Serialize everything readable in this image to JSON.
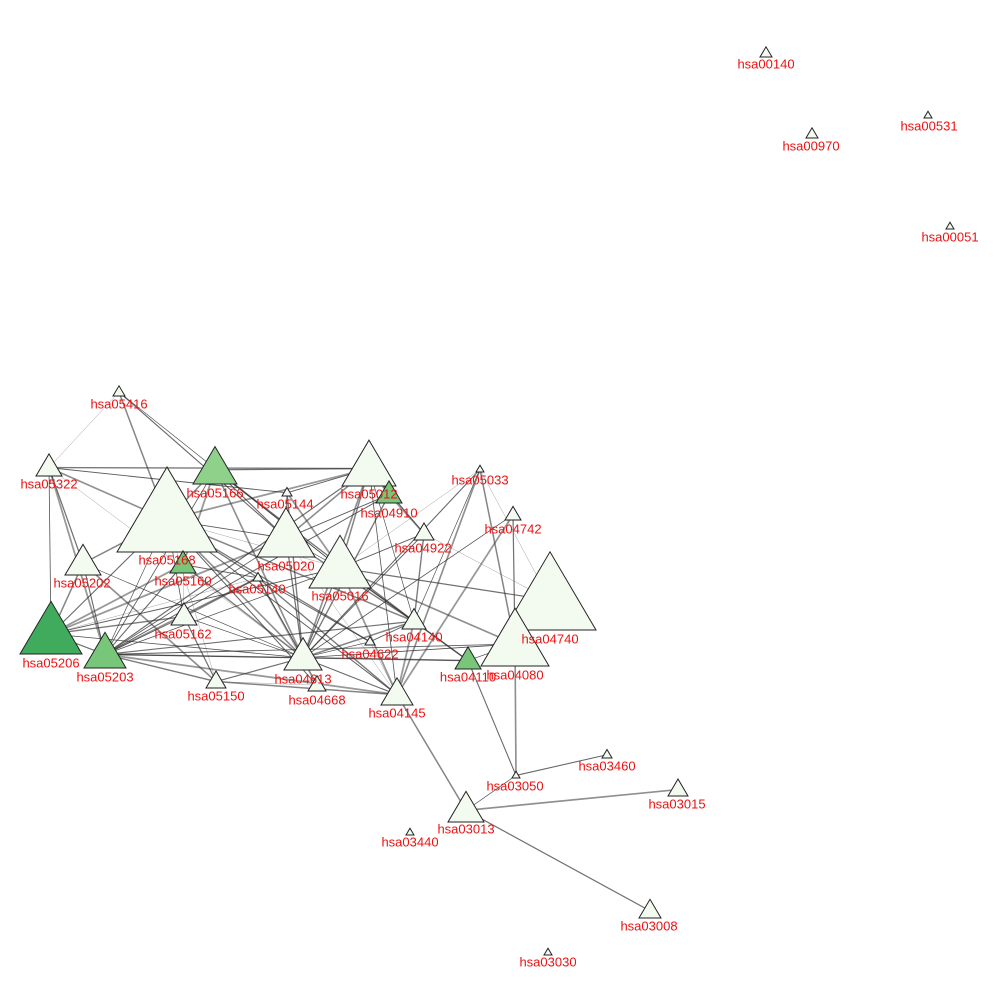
{
  "network": {
    "colors": {
      "label": "#ee1111",
      "edge": "#333333",
      "node_outline": "#222222",
      "fill_pale": "#f3faf0",
      "fill_light": "#8fd18b",
      "fill_mid": "#78c679",
      "fill_dark": "#41ab5d"
    },
    "nodes": [
      {
        "id": "hsa00140",
        "fill": "fill_pale"
      },
      {
        "id": "hsa00531",
        "fill": "fill_pale"
      },
      {
        "id": "hsa00970",
        "fill": "fill_pale"
      },
      {
        "id": "hsa00051",
        "fill": "fill_pale"
      },
      {
        "id": "hsa05416",
        "fill": "fill_pale"
      },
      {
        "id": "hsa05322",
        "fill": "fill_pale"
      },
      {
        "id": "hsa05166",
        "fill": "fill_light"
      },
      {
        "id": "hsa05144",
        "fill": "fill_pale"
      },
      {
        "id": "hsa05012",
        "fill": "fill_pale"
      },
      {
        "id": "hsa04910",
        "fill": "fill_mid"
      },
      {
        "id": "hsa05033",
        "fill": "fill_pale"
      },
      {
        "id": "hsa04742",
        "fill": "fill_pale"
      },
      {
        "id": "hsa04922",
        "fill": "fill_pale"
      },
      {
        "id": "hsa05168",
        "fill": "fill_pale"
      },
      {
        "id": "hsa05020",
        "fill": "fill_pale"
      },
      {
        "id": "hsa05202",
        "fill": "fill_pale"
      },
      {
        "id": "hsa05160",
        "fill": "fill_mid"
      },
      {
        "id": "hsa05140",
        "fill": "fill_pale"
      },
      {
        "id": "hsa05016",
        "fill": "fill_pale"
      },
      {
        "id": "hsa04740",
        "fill": "fill_pale"
      },
      {
        "id": "hsa05162",
        "fill": "fill_pale"
      },
      {
        "id": "hsa04140",
        "fill": "fill_pale"
      },
      {
        "id": "hsa05206",
        "fill": "fill_dark"
      },
      {
        "id": "hsa05203",
        "fill": "fill_mid"
      },
      {
        "id": "hsa04622",
        "fill": "fill_pale"
      },
      {
        "id": "hsa04613",
        "fill": "fill_pale"
      },
      {
        "id": "hsa04110",
        "fill": "fill_mid"
      },
      {
        "id": "hsa04080",
        "fill": "fill_pale"
      },
      {
        "id": "hsa05150",
        "fill": "fill_pale"
      },
      {
        "id": "hsa04668",
        "fill": "fill_pale"
      },
      {
        "id": "hsa04145",
        "fill": "fill_pale"
      },
      {
        "id": "hsa03050",
        "fill": "fill_pale"
      },
      {
        "id": "hsa03460",
        "fill": "fill_pale"
      },
      {
        "id": "hsa03015",
        "fill": "fill_pale"
      },
      {
        "id": "hsa03013",
        "fill": "fill_pale"
      },
      {
        "id": "hsa03440",
        "fill": "fill_pale"
      },
      {
        "id": "hsa03008",
        "fill": "fill_pale"
      },
      {
        "id": "hsa03030",
        "fill": "fill_pale"
      }
    ],
    "edges": [
      [
        "hsa05416",
        "hsa05322"
      ],
      [
        "hsa05416",
        "hsa05168"
      ],
      [
        "hsa05416",
        "hsa05020"
      ],
      [
        "hsa05416",
        "hsa05016"
      ],
      [
        "hsa05322",
        "hsa05168"
      ],
      [
        "hsa05322",
        "hsa05202"
      ],
      [
        "hsa05322",
        "hsa05206"
      ],
      [
        "hsa05322",
        "hsa05203"
      ],
      [
        "hsa05322",
        "hsa05012"
      ],
      [
        "hsa05322",
        "hsa05144"
      ],
      [
        "hsa05322",
        "hsa04613"
      ],
      [
        "hsa05166",
        "hsa05168"
      ],
      [
        "hsa05166",
        "hsa05020"
      ],
      [
        "hsa05166",
        "hsa05016"
      ],
      [
        "hsa05166",
        "hsa04613"
      ],
      [
        "hsa05166",
        "hsa05012"
      ],
      [
        "hsa05166",
        "hsa05203"
      ],
      [
        "hsa05166",
        "hsa05160"
      ],
      [
        "hsa05166",
        "hsa04140"
      ],
      [
        "hsa05168",
        "hsa05020"
      ],
      [
        "hsa05168",
        "hsa05016"
      ],
      [
        "hsa05168",
        "hsa05202"
      ],
      [
        "hsa05168",
        "hsa05206"
      ],
      [
        "hsa05168",
        "hsa05203"
      ],
      [
        "hsa05168",
        "hsa04613"
      ],
      [
        "hsa05168",
        "hsa05140"
      ],
      [
        "hsa05168",
        "hsa05162"
      ],
      [
        "hsa05168",
        "hsa05012"
      ],
      [
        "hsa05168",
        "hsa04622"
      ],
      [
        "hsa05168",
        "hsa04145"
      ],
      [
        "hsa05168",
        "hsa05150"
      ],
      [
        "hsa05168",
        "hsa04140"
      ],
      [
        "hsa05168",
        "hsa04668"
      ],
      [
        "hsa05020",
        "hsa05016"
      ],
      [
        "hsa05020",
        "hsa05012"
      ],
      [
        "hsa05020",
        "hsa04613"
      ],
      [
        "hsa05020",
        "hsa05203"
      ],
      [
        "hsa05020",
        "hsa05206"
      ],
      [
        "hsa05020",
        "hsa04140"
      ],
      [
        "hsa05020",
        "hsa04910"
      ],
      [
        "hsa05020",
        "hsa04145"
      ],
      [
        "hsa05016",
        "hsa05012"
      ],
      [
        "hsa05016",
        "hsa04613"
      ],
      [
        "hsa05016",
        "hsa04140"
      ],
      [
        "hsa05016",
        "hsa04080"
      ],
      [
        "hsa05016",
        "hsa04740"
      ],
      [
        "hsa05016",
        "hsa05203"
      ],
      [
        "hsa05016",
        "hsa04145"
      ],
      [
        "hsa05016",
        "hsa04110"
      ],
      [
        "hsa05016",
        "hsa04922"
      ],
      [
        "hsa05016",
        "hsa05033"
      ],
      [
        "hsa05012",
        "hsa04910"
      ],
      [
        "hsa05012",
        "hsa04922"
      ],
      [
        "hsa05012",
        "hsa04140"
      ],
      [
        "hsa05012",
        "hsa04613"
      ],
      [
        "hsa05012",
        "hsa05203"
      ],
      [
        "hsa05012",
        "hsa04145"
      ],
      [
        "hsa04910",
        "hsa04922"
      ],
      [
        "hsa04910",
        "hsa04613"
      ],
      [
        "hsa04910",
        "hsa05203"
      ],
      [
        "hsa05033",
        "hsa04740"
      ],
      [
        "hsa05033",
        "hsa04080"
      ],
      [
        "hsa05033",
        "hsa04613"
      ],
      [
        "hsa05033",
        "hsa04140"
      ],
      [
        "hsa05033",
        "hsa04145"
      ],
      [
        "hsa04742",
        "hsa04080"
      ],
      [
        "hsa04742",
        "hsa04613"
      ],
      [
        "hsa04742",
        "hsa04145"
      ],
      [
        "hsa04922",
        "hsa04140"
      ],
      [
        "hsa04922",
        "hsa04613"
      ],
      [
        "hsa04922",
        "hsa04740"
      ],
      [
        "hsa05202",
        "hsa05206"
      ],
      [
        "hsa05202",
        "hsa05203"
      ],
      [
        "hsa05202",
        "hsa04613"
      ],
      [
        "hsa05202",
        "hsa05150"
      ],
      [
        "hsa05206",
        "hsa05203"
      ],
      [
        "hsa05206",
        "hsa04613"
      ],
      [
        "hsa05206",
        "hsa05160"
      ],
      [
        "hsa05206",
        "hsa05162"
      ],
      [
        "hsa05206",
        "hsa05016"
      ],
      [
        "hsa05206",
        "hsa05140"
      ],
      [
        "hsa05203",
        "hsa04613"
      ],
      [
        "hsa05203",
        "hsa05160"
      ],
      [
        "hsa05203",
        "hsa05162"
      ],
      [
        "hsa05203",
        "hsa05140"
      ],
      [
        "hsa05203",
        "hsa04140"
      ],
      [
        "hsa05203",
        "hsa04110"
      ],
      [
        "hsa05203",
        "hsa04145"
      ],
      [
        "hsa05203",
        "hsa05150"
      ],
      [
        "hsa05203",
        "hsa04080"
      ],
      [
        "hsa05160",
        "hsa05162"
      ],
      [
        "hsa05160",
        "hsa04613"
      ],
      [
        "hsa05160",
        "hsa05140"
      ],
      [
        "hsa05162",
        "hsa04613"
      ],
      [
        "hsa05162",
        "hsa05140"
      ],
      [
        "hsa05162",
        "hsa05150"
      ],
      [
        "hsa05140",
        "hsa04613"
      ],
      [
        "hsa05140",
        "hsa04668"
      ],
      [
        "hsa05140",
        "hsa04145"
      ],
      [
        "hsa05140",
        "hsa04622"
      ],
      [
        "hsa04613",
        "hsa04668"
      ],
      [
        "hsa04613",
        "hsa04140"
      ],
      [
        "hsa04613",
        "hsa04145"
      ],
      [
        "hsa04613",
        "hsa04622"
      ],
      [
        "hsa04613",
        "hsa04110"
      ],
      [
        "hsa04613",
        "hsa05150"
      ],
      [
        "hsa04613",
        "hsa04080"
      ],
      [
        "hsa04140",
        "hsa04145"
      ],
      [
        "hsa04140",
        "hsa04110"
      ],
      [
        "hsa04140",
        "hsa04622"
      ],
      [
        "hsa04145",
        "hsa04622"
      ],
      [
        "hsa04145",
        "hsa03013"
      ],
      [
        "hsa04110",
        "hsa03050"
      ],
      [
        "hsa04110",
        "hsa04080"
      ],
      [
        "hsa04080",
        "hsa03050"
      ],
      [
        "hsa04080",
        "hsa04740"
      ],
      [
        "hsa05144",
        "hsa05020"
      ],
      [
        "hsa05144",
        "hsa05016"
      ],
      [
        "hsa05144",
        "hsa04613"
      ],
      [
        "hsa05144",
        "hsa05012"
      ],
      [
        "hsa05150",
        "hsa04668"
      ],
      [
        "hsa05150",
        "hsa04145"
      ],
      [
        "hsa03050",
        "hsa03460"
      ],
      [
        "hsa03050",
        "hsa03013"
      ],
      [
        "hsa03013",
        "hsa03015"
      ],
      [
        "hsa03013",
        "hsa03008"
      ]
    ]
  }
}
